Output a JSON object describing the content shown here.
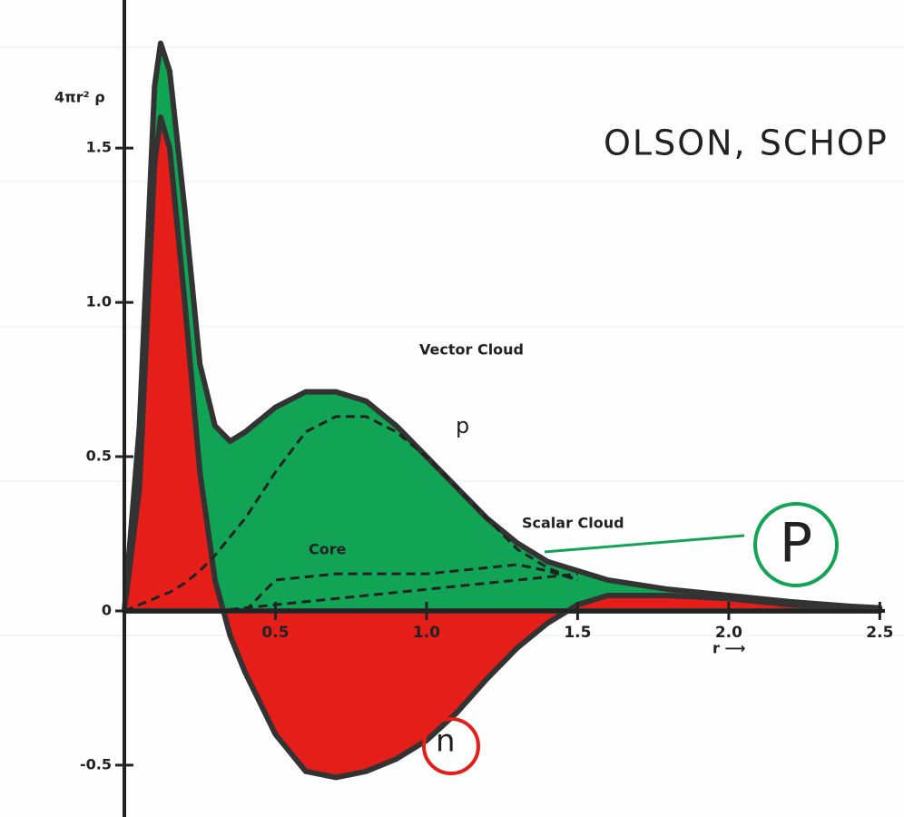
{
  "chart_data": {
    "type": "area",
    "title": "OLSON, SCHOP",
    "y_label": "4πr² ρ",
    "x_label": "r ⟶",
    "annotations": [
      "P"
    ],
    "x": [
      0,
      0.05,
      0.1,
      0.12,
      0.15,
      0.2,
      0.25,
      0.3,
      0.35,
      0.4,
      0.5,
      0.6,
      0.7,
      0.8,
      0.9,
      1.0,
      1.1,
      1.2,
      1.3,
      1.4,
      1.5,
      1.6,
      1.8,
      2.0,
      2.2,
      2.4,
      2.5
    ],
    "series": [
      {
        "name": "p",
        "color": "#12a455",
        "style": "area",
        "values": [
          0,
          0.6,
          1.7,
          1.84,
          1.75,
          1.3,
          0.8,
          0.6,
          0.55,
          0.58,
          0.66,
          0.71,
          0.71,
          0.68,
          0.6,
          0.5,
          0.4,
          0.3,
          0.22,
          0.16,
          0.13,
          0.1,
          0.07,
          0.05,
          0.03,
          0.015,
          0.01
        ]
      },
      {
        "name": "n",
        "color": "#e61e1a",
        "style": "area",
        "values": [
          0,
          0.4,
          1.45,
          1.6,
          1.5,
          1.0,
          0.45,
          0.1,
          -0.08,
          -0.2,
          -0.4,
          -0.52,
          -0.54,
          -0.52,
          -0.48,
          -0.42,
          -0.33,
          -0.22,
          -0.12,
          -0.04,
          0.02,
          0.05,
          0.05,
          0.04,
          0.02,
          0.01,
          0
        ]
      },
      {
        "name": "Vector Cloud",
        "color": "#222222",
        "style": "dashed",
        "values": [
          0,
          0.02,
          0.04,
          0.05,
          0.06,
          0.09,
          0.13,
          0.18,
          0.24,
          0.3,
          0.45,
          0.58,
          0.63,
          0.63,
          0.58,
          0.5,
          0.4,
          0.3,
          0.2,
          0.14,
          0.1,
          null,
          null,
          null,
          null,
          null,
          null
        ]
      },
      {
        "name": "Scalar Cloud",
        "color": "#222222",
        "style": "dashed",
        "values": [
          null,
          null,
          null,
          null,
          null,
          null,
          null,
          0,
          0.005,
          0.01,
          0.02,
          0.03,
          0.04,
          0.05,
          0.06,
          0.07,
          0.08,
          0.09,
          0.1,
          0.11,
          0.12,
          null,
          null,
          null,
          null,
          null,
          null
        ]
      },
      {
        "name": "Core",
        "color": "#222222",
        "style": "dashed",
        "values": [
          null,
          null,
          null,
          null,
          null,
          null,
          null,
          null,
          null,
          0,
          0.1,
          0.11,
          0.12,
          0.12,
          0.12,
          0.12,
          0.13,
          0.14,
          0.15,
          0.13,
          0.1,
          null,
          null,
          null,
          null,
          null,
          null
        ]
      }
    ],
    "xlim": [
      0,
      2.58
    ],
    "ylim": [
      -0.668,
      1.98
    ],
    "xticks": [
      0.5,
      {
        "value": 1,
        "label": "1.0"
      },
      1.5,
      {
        "value": 2,
        "label": "2.0"
      },
      2.5
    ],
    "yticks": [
      -0.5,
      0,
      0.5,
      {
        "value": 1,
        "label": "1.0"
      },
      1.5
    ]
  }
}
